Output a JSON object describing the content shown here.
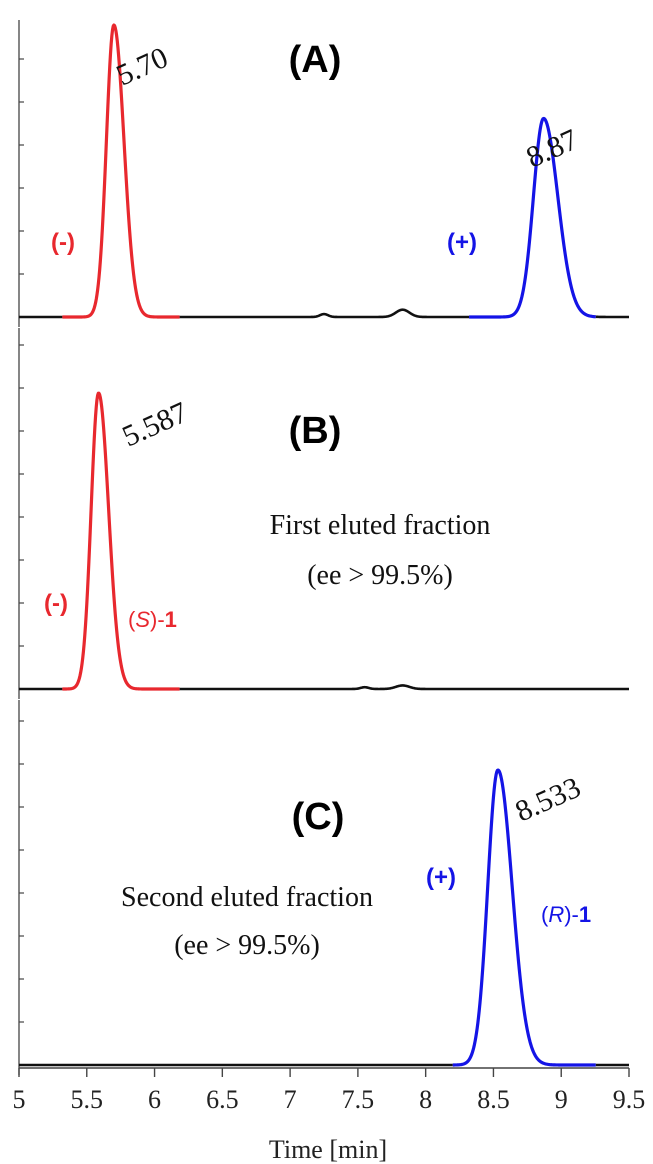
{
  "chart_data": {
    "type": "line",
    "subtype": "chromatogram",
    "xlabel": "Time [min]",
    "xlim": [
      5,
      9.5
    ],
    "xticks": [
      "5",
      "5.5",
      "6",
      "6.5",
      "7",
      "7.5",
      "8",
      "8.5",
      "9",
      "9.5"
    ],
    "colors": {
      "minus": "#e8282e",
      "plus": "#1414e6",
      "baseline": "#111111",
      "axis": "#444444"
    },
    "panels": [
      {
        "id": "A",
        "label": "(A)",
        "peaks": [
          {
            "rt": 5.7,
            "rt_label": "5.70",
            "height": 1.0,
            "sigma": 0.055,
            "tail": 1.35,
            "sign_label": "(-)",
            "color": "#e8282e",
            "range": [
              5.32,
              6.18
            ]
          },
          {
            "rt": 8.87,
            "rt_label": "8.87",
            "height": 0.68,
            "sigma": 0.075,
            "tail": 1.4,
            "sign_label": "(+)",
            "color": "#1414e6",
            "range": [
              8.32,
              9.25
            ]
          }
        ],
        "bumps": [
          {
            "rt": 7.83,
            "height": 0.025,
            "sigma": 0.05
          },
          {
            "rt": 7.25,
            "height": 0.01,
            "sigma": 0.03
          }
        ]
      },
      {
        "id": "B",
        "label": "(B)",
        "annotation": [
          "First eluted fraction",
          "(ee > 99.5%)"
        ],
        "compound_label": {
          "prefix": "(",
          "config": "S",
          "suffix": ")-",
          "number": "1"
        },
        "peaks": [
          {
            "rt": 5.587,
            "rt_label": "5.587",
            "height": 1.0,
            "sigma": 0.055,
            "tail": 1.35,
            "sign_label": "(-)",
            "color": "#e8282e",
            "range": [
              5.32,
              6.18
            ]
          }
        ],
        "bumps": [
          {
            "rt": 7.83,
            "height": 0.012,
            "sigma": 0.05
          },
          {
            "rt": 7.55,
            "height": 0.006,
            "sigma": 0.03
          }
        ]
      },
      {
        "id": "C",
        "label": "(C)",
        "annotation": [
          "Second eluted fraction",
          "(ee > 99.5%)"
        ],
        "compound_label": {
          "prefix": "(",
          "config": "R",
          "suffix": ")-",
          "number": "1"
        },
        "peaks": [
          {
            "rt": 8.533,
            "rt_label": "8.533",
            "height": 1.0,
            "sigma": 0.075,
            "tail": 1.4,
            "sign_label": "(+)",
            "color": "#1414e6",
            "range": [
              8.2,
              9.25
            ]
          }
        ],
        "bumps": []
      }
    ]
  }
}
